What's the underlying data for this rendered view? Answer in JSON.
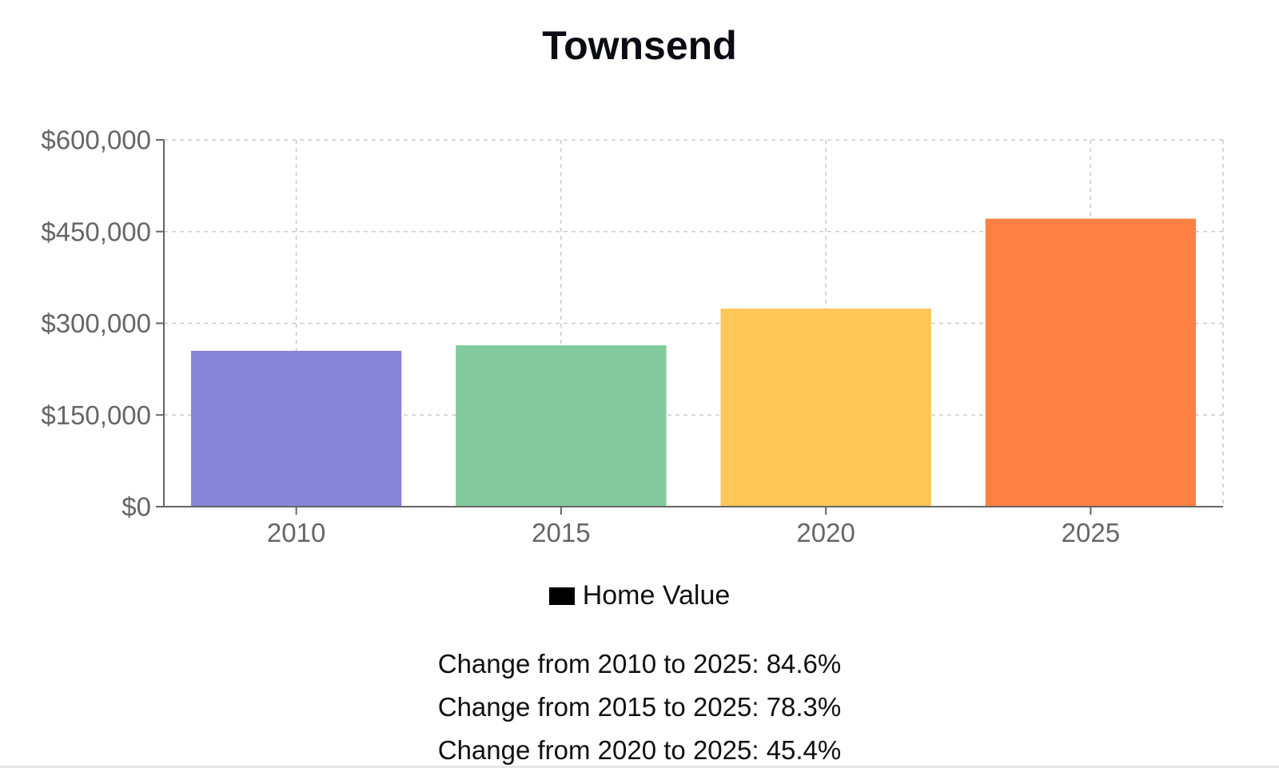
{
  "chart_data": {
    "type": "bar",
    "title": "Townsend",
    "categories": [
      "2010",
      "2015",
      "2020",
      "2025"
    ],
    "series": [
      {
        "name": "Home Value",
        "values": [
          255000,
          264000,
          324000,
          471000
        ],
        "colors": [
          "#8884d8",
          "#82ca9d",
          "#ffc658",
          "#ff8042"
        ]
      }
    ],
    "ylim": [
      0,
      600000
    ],
    "yticks": [
      0,
      150000,
      300000,
      450000,
      600000
    ],
    "ytick_labels": [
      "$0",
      "$150,000",
      "$300,000",
      "$450,000",
      "$600,000"
    ],
    "grid": true,
    "legend_position": "bottom"
  },
  "legend": {
    "label": "Home Value",
    "swatch_color": "#000000"
  },
  "changes": [
    "Change from 2010 to 2025: 84.6%",
    "Change from 2015 to 2025: 78.3%",
    "Change from 2020 to 2025: 45.4%"
  ]
}
